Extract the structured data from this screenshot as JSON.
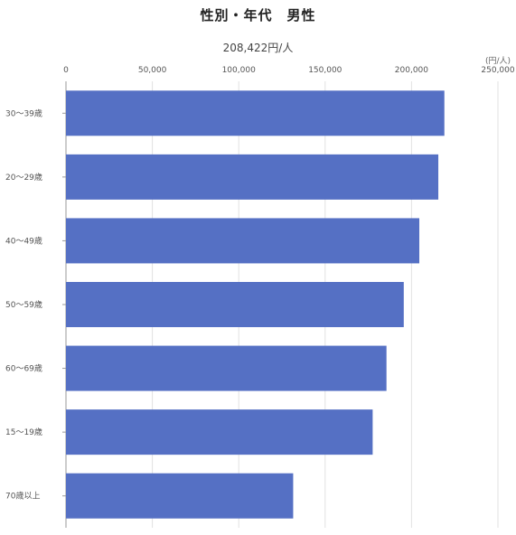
{
  "chart_data": {
    "type": "bar",
    "orientation": "horizontal",
    "title": "性別・年代　男性",
    "subtitle": "208,422円/人",
    "unit_label": "(円/人)",
    "xlabel": "",
    "ylabel": "",
    "xlim": [
      0,
      250000
    ],
    "x_ticks": [
      0,
      50000,
      100000,
      150000,
      200000,
      250000
    ],
    "x_tick_labels": [
      "0",
      "50,000",
      "100,000",
      "150,000",
      "200,000",
      "250,000"
    ],
    "categories": [
      "30～39歳",
      "20～29歳",
      "40～49歳",
      "50～59歳",
      "60～69歳",
      "15～19歳",
      "70歳以上"
    ],
    "values": [
      219000,
      215500,
      204500,
      195500,
      185500,
      177500,
      131500
    ],
    "grid": true,
    "legend": "none",
    "bar_color": "#5570c4",
    "grid_color": "#e2e2e2",
    "axis_color": "#999999"
  }
}
